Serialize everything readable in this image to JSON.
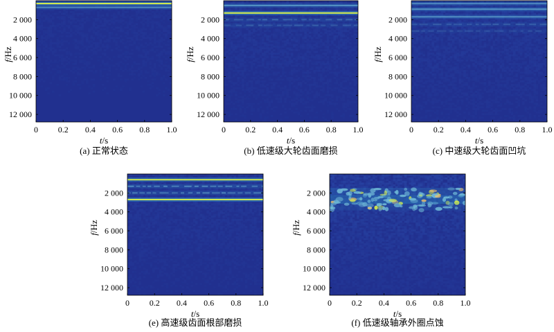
{
  "figure": {
    "background_color": "#21308f",
    "line_color": "#6fb8d6",
    "strong_line_color": "#d9f04a",
    "hot_color": "#f5c36a"
  },
  "chart_data": [
    {
      "type": "heatmap",
      "panel_id": "a",
      "caption": "(a) 正常状态",
      "xlabel_var": "t",
      "xlabel_unit": "/s",
      "ylabel_var": "f",
      "ylabel_unit": "/Hz",
      "xlim": [
        0,
        1.0
      ],
      "ylim": [
        12800,
        0
      ],
      "xticks": [
        "0",
        "0.2",
        "0.4",
        "0.6",
        "0.8",
        "1.0"
      ],
      "yticks": [
        "2 000",
        "4 000",
        "6 000",
        "8 000",
        "10 000",
        "12 000"
      ],
      "bands": [
        {
          "freq": 300,
          "intensity": 0.9,
          "pattern": "solid"
        },
        {
          "freq": 700,
          "intensity": 0.45,
          "pattern": "solid"
        }
      ],
      "noise_level": 0.15
    },
    {
      "type": "heatmap",
      "panel_id": "b",
      "caption": "(b) 低速级大轮齿面磨损",
      "xlabel_var": "t",
      "xlabel_unit": "/s",
      "ylabel_var": "f",
      "ylabel_unit": "/Hz",
      "xlim": [
        0,
        1.0
      ],
      "ylim": [
        12800,
        0
      ],
      "xticks": [
        "0",
        "0.2",
        "0.4",
        "0.6",
        "0.8",
        "1.0"
      ],
      "yticks": [
        "2 000",
        "4 000",
        "6 000",
        "8 000",
        "10 000",
        "12 000"
      ],
      "bands": [
        {
          "freq": 500,
          "intensity": 0.55,
          "pattern": "solid"
        },
        {
          "freq": 1300,
          "intensity": 1.0,
          "pattern": "solid"
        },
        {
          "freq": 2000,
          "intensity": 0.35,
          "pattern": "dashed"
        },
        {
          "freq": 2600,
          "intensity": 0.3,
          "pattern": "dashed"
        }
      ],
      "noise_level": 0.25
    },
    {
      "type": "heatmap",
      "panel_id": "c",
      "caption": "(c) 中速级大轮齿面凹坑",
      "xlabel_var": "t",
      "xlabel_unit": "/s",
      "ylabel_var": "f",
      "ylabel_unit": "/Hz",
      "xlim": [
        0,
        1.0
      ],
      "ylim": [
        12800,
        0
      ],
      "xticks": [
        "0",
        "0.2",
        "0.4",
        "0.6",
        "0.8",
        "1.0"
      ],
      "yticks": [
        "2 000",
        "4 000",
        "6 000",
        "8 000",
        "10 000",
        "12 000"
      ],
      "bands": [
        {
          "freq": 300,
          "intensity": 0.45,
          "pattern": "solid"
        },
        {
          "freq": 900,
          "intensity": 0.55,
          "pattern": "solid"
        },
        {
          "freq": 1700,
          "intensity": 0.5,
          "pattern": "solid"
        },
        {
          "freq": 2500,
          "intensity": 0.3,
          "pattern": "dashed"
        },
        {
          "freq": 3200,
          "intensity": 0.2,
          "pattern": "dashed"
        }
      ],
      "noise_level": 0.3
    },
    {
      "type": "heatmap",
      "panel_id": "e",
      "caption": "(e) 高速级齿面根部磨损",
      "xlabel_var": "t",
      "xlabel_unit": "/s",
      "ylabel_var": "f",
      "ylabel_unit": "/Hz",
      "xlim": [
        0,
        1.0
      ],
      "ylim": [
        12800,
        0
      ],
      "xticks": [
        "0",
        "0.2",
        "0.4",
        "0.6",
        "0.8",
        "1.0"
      ],
      "yticks": [
        "2 000",
        "4 000",
        "6 000",
        "8 000",
        "10 000",
        "12 000"
      ],
      "bands": [
        {
          "freq": 600,
          "intensity": 0.85,
          "pattern": "solid"
        },
        {
          "freq": 1300,
          "intensity": 0.6,
          "pattern": "dashed"
        },
        {
          "freq": 2000,
          "intensity": 0.55,
          "pattern": "dashed"
        },
        {
          "freq": 2700,
          "intensity": 1.0,
          "pattern": "solid"
        }
      ],
      "noise_level": 0.25
    },
    {
      "type": "heatmap",
      "panel_id": "f",
      "caption": "(f) 低速级轴承外圈点蚀",
      "xlabel_var": "t",
      "xlabel_unit": "/s",
      "ylabel_var": "f",
      "ylabel_unit": "/Hz",
      "xlim": [
        0,
        1.0
      ],
      "ylim": [
        12800,
        0
      ],
      "xticks": [
        "0",
        "0.2",
        "0.4",
        "0.6",
        "0.8",
        "1.0"
      ],
      "yticks": [
        "2 000",
        "4 000",
        "6 000",
        "8 000",
        "10 000",
        "12 000"
      ],
      "bands": [
        {
          "freq": 1900,
          "intensity": 0.55,
          "pattern": "blobby"
        },
        {
          "freq": 2700,
          "intensity": 0.9,
          "pattern": "blobby"
        },
        {
          "freq": 3400,
          "intensity": 0.35,
          "pattern": "blobby"
        }
      ],
      "noise_level": 0.45
    }
  ]
}
